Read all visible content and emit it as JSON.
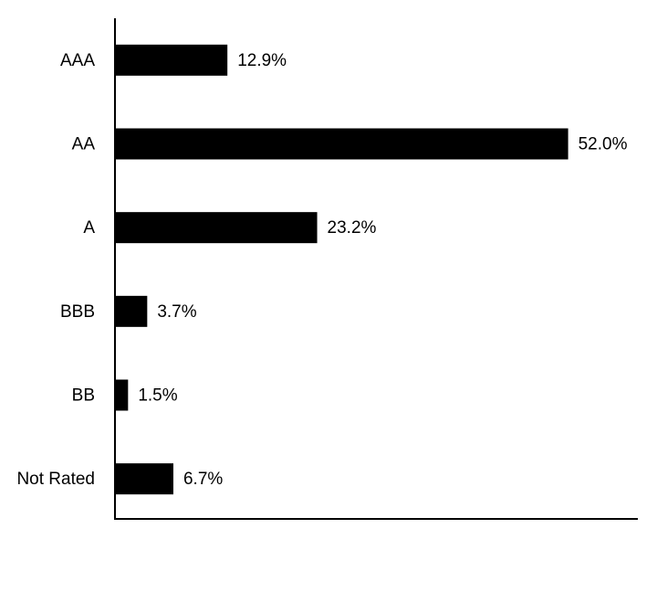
{
  "chart_data": {
    "type": "hbar",
    "categories": [
      "AAA",
      "AA",
      "A",
      "BBB",
      "BB",
      "Not Rated"
    ],
    "values": [
      12.9,
      52.0,
      23.2,
      3.7,
      1.5,
      6.7
    ],
    "value_labels": [
      "12.9%",
      "52.0%",
      "23.2%",
      "3.7%",
      "1.5%",
      "6.7%"
    ],
    "color": "#000000",
    "xlim": [
      0,
      60
    ]
  }
}
